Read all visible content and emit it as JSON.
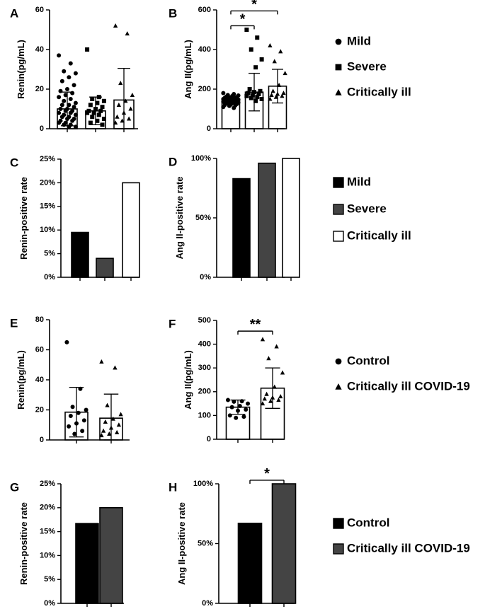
{
  "figure": {
    "legend_groups": [
      {
        "entries": [
          {
            "label": "Mild",
            "marker": "circle"
          },
          {
            "label": "Severe",
            "marker": "square"
          },
          {
            "label": "Critically ill",
            "marker": "triangle"
          }
        ]
      },
      {
        "entries": [
          {
            "label": "Mild",
            "marker": "box",
            "fill": "#000000"
          },
          {
            "label": "Severe",
            "marker": "box",
            "fill": "#444444"
          },
          {
            "label": "Critically ill",
            "marker": "box",
            "fill": "#ffffff"
          }
        ]
      },
      {
        "entries": [
          {
            "label": "Control",
            "marker": "circle"
          },
          {
            "label": "Critically ill COVID-19",
            "marker": "triangle"
          }
        ]
      },
      {
        "entries": [
          {
            "label": "Control",
            "marker": "box",
            "fill": "#000000"
          },
          {
            "label": "Critically ill COVID-19",
            "marker": "box",
            "fill": "#444444"
          }
        ]
      }
    ]
  },
  "chart_data": [
    {
      "panel": "A",
      "type": "bar",
      "ylabel": "Renin(pg/mL)",
      "ylim": [
        0,
        60
      ],
      "yticks": [
        "0",
        "20",
        "40",
        "60"
      ],
      "groups": [
        {
          "name": "Mild",
          "marker": "circle",
          "mean": 10,
          "sd": 8.5,
          "points": [
            37,
            33,
            29,
            28,
            26,
            24,
            22,
            20,
            19,
            18,
            17,
            16,
            15,
            14,
            13,
            12,
            12,
            11,
            10,
            10,
            9,
            9,
            8,
            8,
            7,
            7,
            6,
            6,
            5,
            5,
            4,
            4,
            3,
            3,
            2,
            2,
            1,
            1
          ]
        },
        {
          "name": "Severe",
          "marker": "square",
          "mean": 9,
          "sd": 7,
          "points": [
            40,
            16,
            15,
            14,
            13,
            12,
            11,
            10,
            9,
            9,
            8,
            8,
            7,
            6,
            5,
            4,
            3,
            2
          ]
        },
        {
          "name": "Critically ill",
          "marker": "triangle",
          "mean": 14.5,
          "sd": 16,
          "points": [
            52,
            48,
            23,
            17,
            14,
            12,
            10,
            8,
            6,
            5,
            4,
            3
          ]
        }
      ],
      "significance": []
    },
    {
      "panel": "B",
      "type": "bar",
      "ylabel": "Ang II(pg/mL)",
      "ylim": [
        0,
        600
      ],
      "yticks": [
        "0",
        "200",
        "400",
        "600"
      ],
      "groups": [
        {
          "name": "Mild",
          "marker": "circle",
          "mean": 150,
          "sd": 15,
          "points": [
            180,
            175,
            170,
            168,
            165,
            162,
            160,
            158,
            156,
            154,
            152,
            150,
            150,
            148,
            147,
            146,
            145,
            144,
            142,
            140,
            140,
            138,
            136,
            135,
            133,
            132,
            130,
            128,
            125,
            122,
            120,
            118,
            115,
            110,
            105
          ]
        },
        {
          "name": "Severe",
          "marker": "square",
          "mean": 185,
          "sd": 95,
          "points": [
            500,
            460,
            400,
            350,
            310,
            200,
            190,
            185,
            180,
            175,
            170,
            165,
            160,
            155,
            150,
            140
          ]
        },
        {
          "name": "Critically ill",
          "marker": "triangle",
          "mean": 215,
          "sd": 85,
          "points": [
            420,
            390,
            340,
            280,
            220,
            190,
            180,
            175,
            170,
            165,
            160,
            150
          ]
        }
      ],
      "significance": [
        {
          "from": 0,
          "to": 1,
          "label": "*",
          "y": 520
        },
        {
          "from": 0,
          "to": 2,
          "label": "*",
          "y": 595
        }
      ]
    },
    {
      "panel": "C",
      "type": "bar",
      "ylabel": "Renin-positive rate",
      "ylim": [
        0,
        25
      ],
      "yticks": [
        "0%",
        "5%",
        "10%",
        "15%",
        "20%",
        "25%"
      ],
      "categories": [
        "Mild",
        "Severe",
        "Critically ill"
      ],
      "values": [
        9.5,
        4,
        20
      ],
      "colors": [
        "#000000",
        "#444444",
        "#ffffff"
      ],
      "significance": []
    },
    {
      "panel": "D",
      "type": "bar",
      "ylabel": "Ang II-positive rate",
      "ylim": [
        0,
        100
      ],
      "ytick_values": [
        0,
        50,
        100
      ],
      "yticks": [
        "0%",
        "50%",
        "100%"
      ],
      "categories": [
        "Mild",
        "Severe",
        "Critically ill"
      ],
      "values": [
        83,
        96,
        100
      ],
      "colors": [
        "#000000",
        "#444444",
        "#ffffff"
      ],
      "significance": []
    },
    {
      "panel": "E",
      "type": "bar",
      "ylabel": "Renin(pg/mL)",
      "ylim": [
        0,
        80
      ],
      "yticks": [
        "0",
        "20",
        "40",
        "60",
        "80"
      ],
      "groups": [
        {
          "name": "Control",
          "marker": "circle",
          "mean": 18.5,
          "sd": 16.5,
          "points": [
            65,
            34,
            22,
            20,
            18,
            16,
            13,
            11,
            9,
            6,
            4
          ]
        },
        {
          "name": "Critically ill COVID-19",
          "marker": "triangle",
          "mean": 14.5,
          "sd": 16,
          "points": [
            52,
            48,
            23,
            17,
            14,
            12,
            10,
            8,
            6,
            5,
            4,
            3
          ]
        }
      ],
      "significance": []
    },
    {
      "panel": "F",
      "type": "bar",
      "ylabel": "Ang II(pg/mL)",
      "ylim": [
        0,
        500
      ],
      "yticks": [
        "0",
        "100",
        "200",
        "300",
        "400",
        "500"
      ],
      "groups": [
        {
          "name": "Control",
          "marker": "circle",
          "mean": 135,
          "sd": 30,
          "points": [
            165,
            160,
            158,
            150,
            140,
            135,
            125,
            120,
            100,
            95,
            90
          ]
        },
        {
          "name": "Critically ill COVID-19",
          "marker": "triangle",
          "mean": 215,
          "sd": 85,
          "points": [
            420,
            390,
            340,
            280,
            220,
            190,
            180,
            175,
            170,
            165,
            160,
            150
          ]
        }
      ],
      "significance": [
        {
          "from": 0,
          "to": 1,
          "label": "**",
          "y": 455
        }
      ]
    },
    {
      "panel": "G",
      "type": "bar",
      "ylabel": "Renin-positive rate",
      "ylim": [
        0,
        25
      ],
      "yticks": [
        "0%",
        "5%",
        "10%",
        "15%",
        "20%",
        "25%"
      ],
      "categories": [
        "Control",
        "Critically ill COVID-19"
      ],
      "values": [
        16.7,
        20
      ],
      "colors": [
        "#000000",
        "#444444"
      ],
      "significance": []
    },
    {
      "panel": "H",
      "type": "bar",
      "ylabel": "Ang II-positive rate",
      "ylim": [
        0,
        100
      ],
      "ytick_values": [
        0,
        50,
        100
      ],
      "yticks": [
        "0%",
        "50%",
        "100%"
      ],
      "categories": [
        "Control",
        "Critically ill COVID-19"
      ],
      "values": [
        67,
        100
      ],
      "colors": [
        "#000000",
        "#444444"
      ],
      "significance": [
        {
          "from": 0,
          "to": 1,
          "label": "*",
          "y": 103
        }
      ]
    }
  ]
}
